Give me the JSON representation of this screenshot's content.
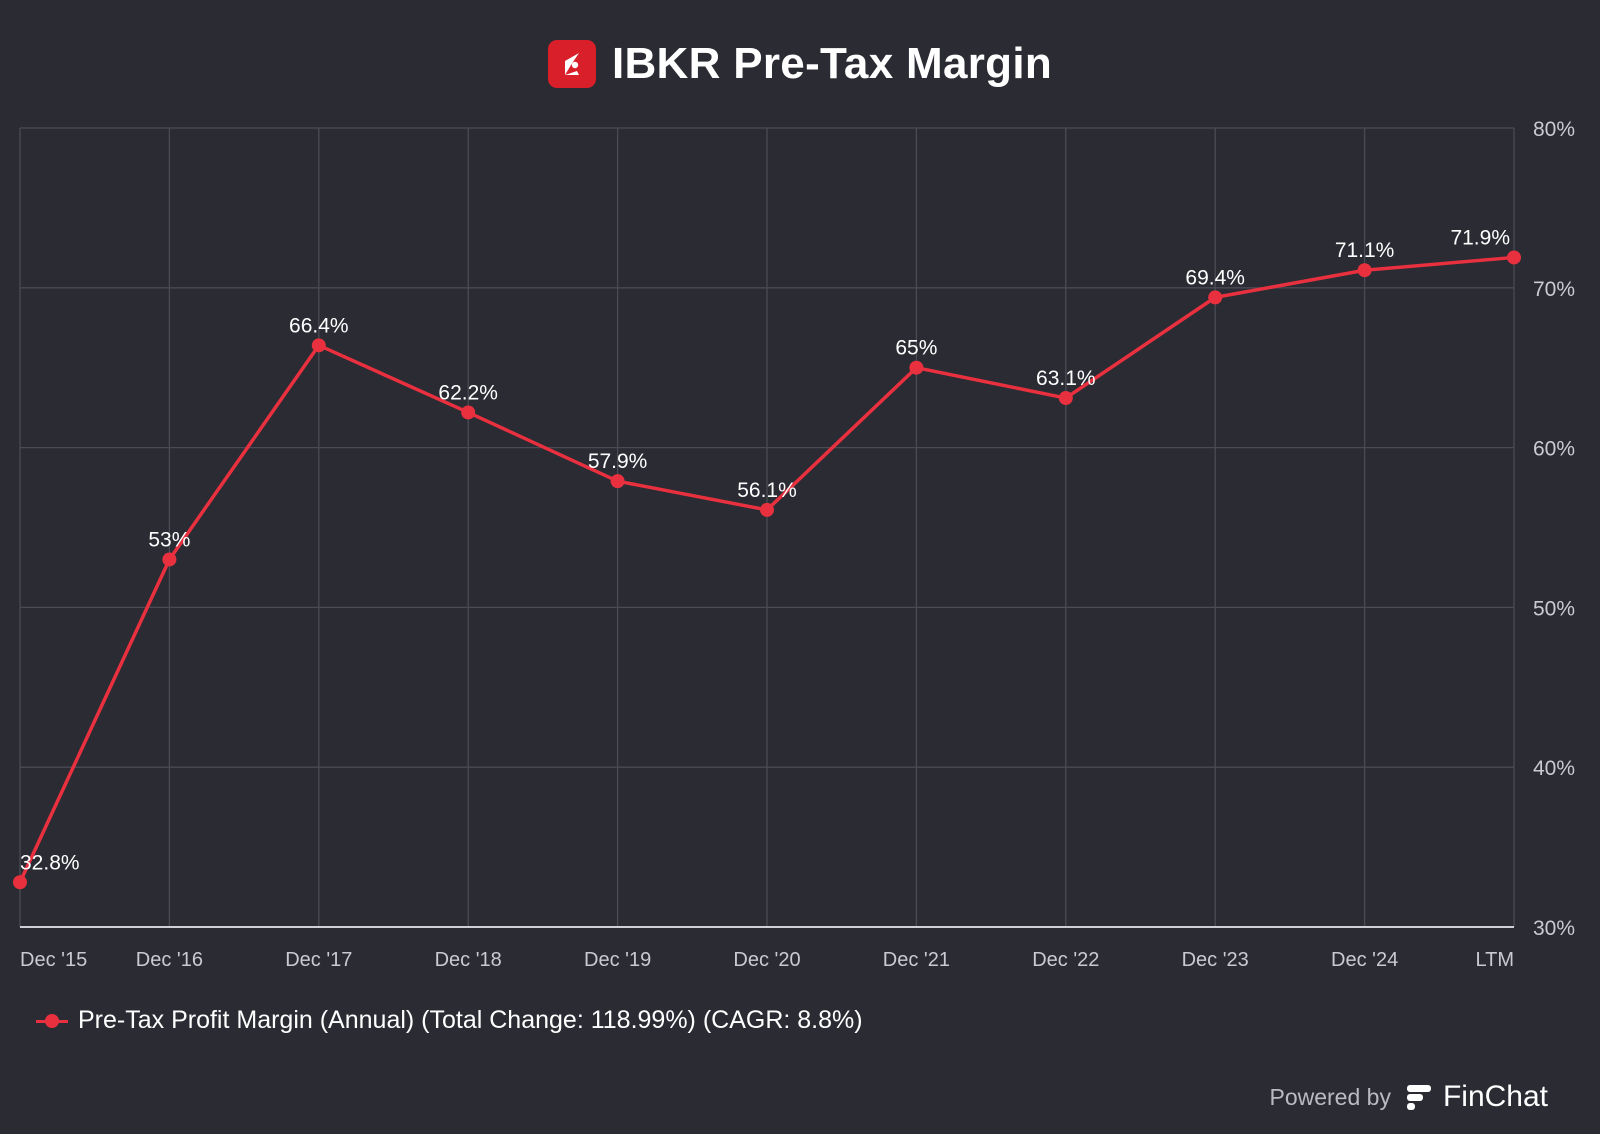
{
  "header": {
    "title": "IBKR Pre-Tax Margin",
    "logo_icon": "ibkr-logo-icon"
  },
  "chart_data": {
    "type": "line",
    "title": "IBKR Pre-Tax Margin",
    "categories": [
      "Dec '15",
      "Dec '16",
      "Dec '17",
      "Dec '18",
      "Dec '19",
      "Dec '20",
      "Dec '21",
      "Dec '22",
      "Dec '23",
      "Dec '24",
      "LTM"
    ],
    "series": [
      {
        "name": "Pre-Tax Profit Margin (Annual) (Total Change: 118.99%) (CAGR: 8.8%)",
        "values": [
          32.8,
          53,
          66.4,
          62.2,
          57.9,
          56.1,
          65,
          63.1,
          69.4,
          71.1,
          71.9
        ],
        "labels": [
          "32.8%",
          "53%",
          "66.4%",
          "62.2%",
          "57.9%",
          "56.1%",
          "65%",
          "63.1%",
          "69.4%",
          "71.1%",
          "71.9%"
        ],
        "color": "#e8303f"
      }
    ],
    "ylim": [
      30,
      80
    ],
    "yticks": [
      30,
      40,
      50,
      60,
      70,
      80
    ],
    "ytick_labels": [
      "30%",
      "40%",
      "50%",
      "60%",
      "70%",
      "80%"
    ],
    "y_axis_side": "right",
    "grid": true,
    "legend_position": "bottom-left",
    "xlabel": "",
    "ylabel": ""
  },
  "legend": {
    "label": "Pre-Tax Profit Margin (Annual) (Total Change: 118.99%) (CAGR: 8.8%)"
  },
  "footer": {
    "powered_by": "Powered by",
    "brand": "FinChat",
    "brand_icon": "finchat-logo-icon"
  },
  "colors": {
    "background": "#2a2b33",
    "grid": "#4a4b55",
    "accent": "#e8303f",
    "logo": "#d81f2a",
    "axis_text": "#c9cad2"
  }
}
